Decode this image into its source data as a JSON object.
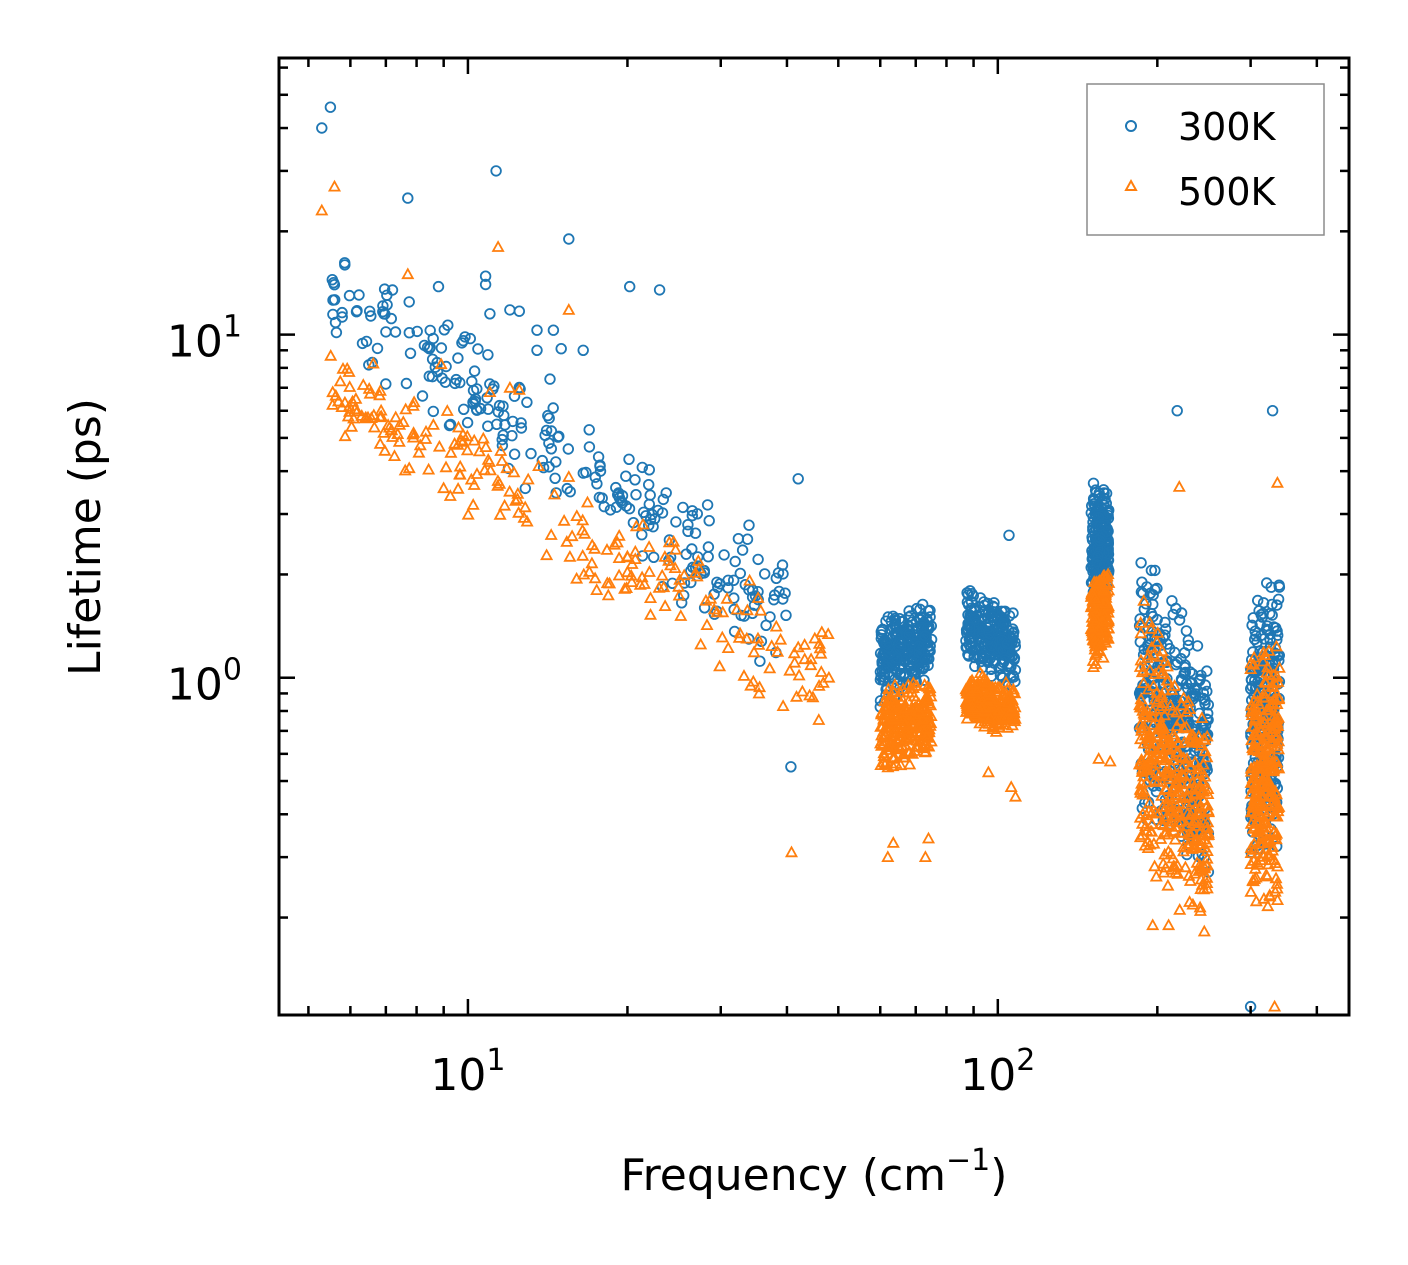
{
  "chart_data": {
    "type": "scatter",
    "title": "",
    "xlabel": "Frequency (cm",
    "xlabel_sup": "−1",
    "xlabel_end": ")",
    "ylabel": "Lifetime (ps)",
    "xscale": "log",
    "yscale": "log",
    "xlim": [
      4.4,
      460
    ],
    "ylim": [
      0.104,
      64
    ],
    "x_ticks": [
      {
        "base": "10",
        "exp": "1",
        "value": 10
      },
      {
        "base": "10",
        "exp": "2",
        "value": 100
      }
    ],
    "y_ticks": [
      {
        "base": "10",
        "exp": "0",
        "value": 1
      },
      {
        "base": "10",
        "exp": "1",
        "value": 10
      }
    ],
    "legend_position": "top-right",
    "series": [
      {
        "name": "300K",
        "color": "#1f77b4",
        "marker": "circle",
        "clusters": [
          {
            "x": [
              5.5,
              40
            ],
            "y_top": [
              22,
              2.4
            ],
            "y_bot": [
              9,
              0.9
            ],
            "n": 260
          },
          {
            "x": [
              60,
              75
            ],
            "y_top": [
              1.6,
              1.7
            ],
            "y_bot": [
              0.8,
              1.0
            ],
            "n": 260
          },
          {
            "x": [
              87,
              108
            ],
            "y_top": [
              1.9,
              1.6
            ],
            "y_bot": [
              1.1,
              0.9
            ],
            "n": 240
          },
          {
            "x": [
              150,
              162
            ],
            "y_top": [
              3.8,
              3.6
            ],
            "y_bot": [
              1.3,
              1.6
            ],
            "n": 220
          },
          {
            "x": [
              185,
              250
            ],
            "y_top": [
              2.8,
              1.2
            ],
            "y_bot": [
              0.35,
              0.25
            ],
            "n": 380
          },
          {
            "x": [
              300,
              340
            ],
            "y_top": [
              1.8,
              2.4
            ],
            "y_bot": [
              0.25,
              0.3
            ],
            "n": 280
          }
        ],
        "points": [
          {
            "x": 5.3,
            "y": 40.0
          },
          {
            "x": 5.5,
            "y": 46.0
          },
          {
            "x": 7.7,
            "y": 25.0
          },
          {
            "x": 8.8,
            "y": 13.8
          },
          {
            "x": 11.3,
            "y": 30.0
          },
          {
            "x": 15.5,
            "y": 19.0
          },
          {
            "x": 20.2,
            "y": 13.8
          },
          {
            "x": 23.0,
            "y": 13.5
          },
          {
            "x": 10.8,
            "y": 14.8
          },
          {
            "x": 10.8,
            "y": 14.0
          },
          {
            "x": 11.0,
            "y": 11.5
          },
          {
            "x": 12.0,
            "y": 11.8
          },
          {
            "x": 12.5,
            "y": 11.7
          },
          {
            "x": 13.5,
            "y": 10.3
          },
          {
            "x": 14.5,
            "y": 10.3
          },
          {
            "x": 13.5,
            "y": 9.0
          },
          {
            "x": 15.0,
            "y": 9.1
          },
          {
            "x": 16.5,
            "y": 9.0
          },
          {
            "x": 218.0,
            "y": 6.0
          },
          {
            "x": 330.0,
            "y": 6.0
          },
          {
            "x": 40.7,
            "y": 0.55
          },
          {
            "x": 42.0,
            "y": 3.8
          },
          {
            "x": 105.0,
            "y": 2.6
          },
          {
            "x": 300.0,
            "y": 0.11
          }
        ]
      },
      {
        "name": "500K",
        "color": "#ff7f0e",
        "marker": "triangle",
        "clusters": [
          {
            "x": [
              5.5,
              48
            ],
            "y_top": [
              10,
              1.6
            ],
            "y_bot": [
              5,
              0.6
            ],
            "n": 240
          },
          {
            "x": [
              60,
              75
            ],
            "y_top": [
              0.95,
              1.0
            ],
            "y_bot": [
              0.5,
              0.6
            ],
            "n": 260
          },
          {
            "x": [
              87,
              108
            ],
            "y_top": [
              1.1,
              0.95
            ],
            "y_bot": [
              0.72,
              0.66
            ],
            "n": 240
          },
          {
            "x": [
              150,
              162
            ],
            "y_top": [
              2.0,
              2.1
            ],
            "y_bot": [
              1.0,
              1.2
            ],
            "n": 220
          },
          {
            "x": [
              185,
              250
            ],
            "y_top": [
              1.8,
              0.8
            ],
            "y_bot": [
              0.26,
              0.17
            ],
            "n": 380
          },
          {
            "x": [
              300,
              340
            ],
            "y_top": [
              1.3,
              1.5
            ],
            "y_bot": [
              0.18,
              0.2
            ],
            "n": 280
          }
        ],
        "points": [
          {
            "x": 5.3,
            "y": 23.0
          },
          {
            "x": 5.6,
            "y": 27.0
          },
          {
            "x": 7.7,
            "y": 15.0
          },
          {
            "x": 8.9,
            "y": 8.2
          },
          {
            "x": 11.4,
            "y": 18.0
          },
          {
            "x": 11.0,
            "y": 6.8
          },
          {
            "x": 12.0,
            "y": 7.0
          },
          {
            "x": 12.5,
            "y": 6.9
          },
          {
            "x": 15.5,
            "y": 11.8
          },
          {
            "x": 17.5,
            "y": 1.8
          },
          {
            "x": 27.5,
            "y": 1.25
          },
          {
            "x": 40.8,
            "y": 0.31
          },
          {
            "x": 48.0,
            "y": 1.0
          },
          {
            "x": 62.0,
            "y": 0.3
          },
          {
            "x": 63.5,
            "y": 0.33
          },
          {
            "x": 73.0,
            "y": 0.3
          },
          {
            "x": 74.0,
            "y": 0.34
          },
          {
            "x": 96.0,
            "y": 0.53
          },
          {
            "x": 106.0,
            "y": 0.48
          },
          {
            "x": 108.0,
            "y": 0.45
          },
          {
            "x": 155.0,
            "y": 0.58
          },
          {
            "x": 163.0,
            "y": 0.57
          },
          {
            "x": 220.0,
            "y": 3.6
          },
          {
            "x": 196.0,
            "y": 0.19
          },
          {
            "x": 210.0,
            "y": 0.19
          },
          {
            "x": 333.0,
            "y": 0.11
          },
          {
            "x": 337.0,
            "y": 3.7
          }
        ]
      }
    ]
  }
}
